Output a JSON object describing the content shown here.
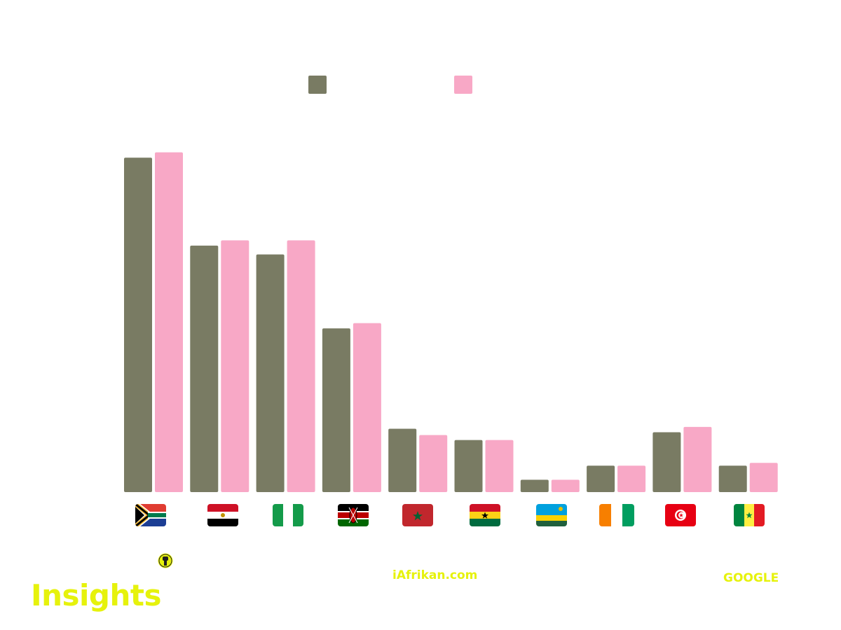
{
  "chart_data": {
    "type": "bar",
    "title": "",
    "xlabel": "",
    "ylabel": "",
    "ylim": [
      0,
      100
    ],
    "categories": [
      "South Africa",
      "Egypt",
      "Nigeria",
      "Kenya",
      "Morocco",
      "Ghana",
      "Rwanda",
      "Côte d'Ivoire",
      "Tunisia",
      "Senegal"
    ],
    "series": [
      {
        "name": "",
        "color": "#797b63",
        "values": [
          95,
          70,
          67.5,
          46.5,
          18,
          14.8,
          3.5,
          7.5,
          17,
          7.5
        ]
      },
      {
        "name": "",
        "color": "#f8a8c6",
        "values": [
          96.5,
          71.5,
          71.5,
          48,
          16.2,
          14.8,
          3.5,
          7.5,
          18.5,
          8.3
        ]
      }
    ],
    "legend_placement": "top-center",
    "grid": false
  },
  "brand": {
    "insights_label": "Insights",
    "site_label": "iAfrikan.com",
    "source_label": "GOOGLE",
    "accent": "#e6f20c"
  }
}
